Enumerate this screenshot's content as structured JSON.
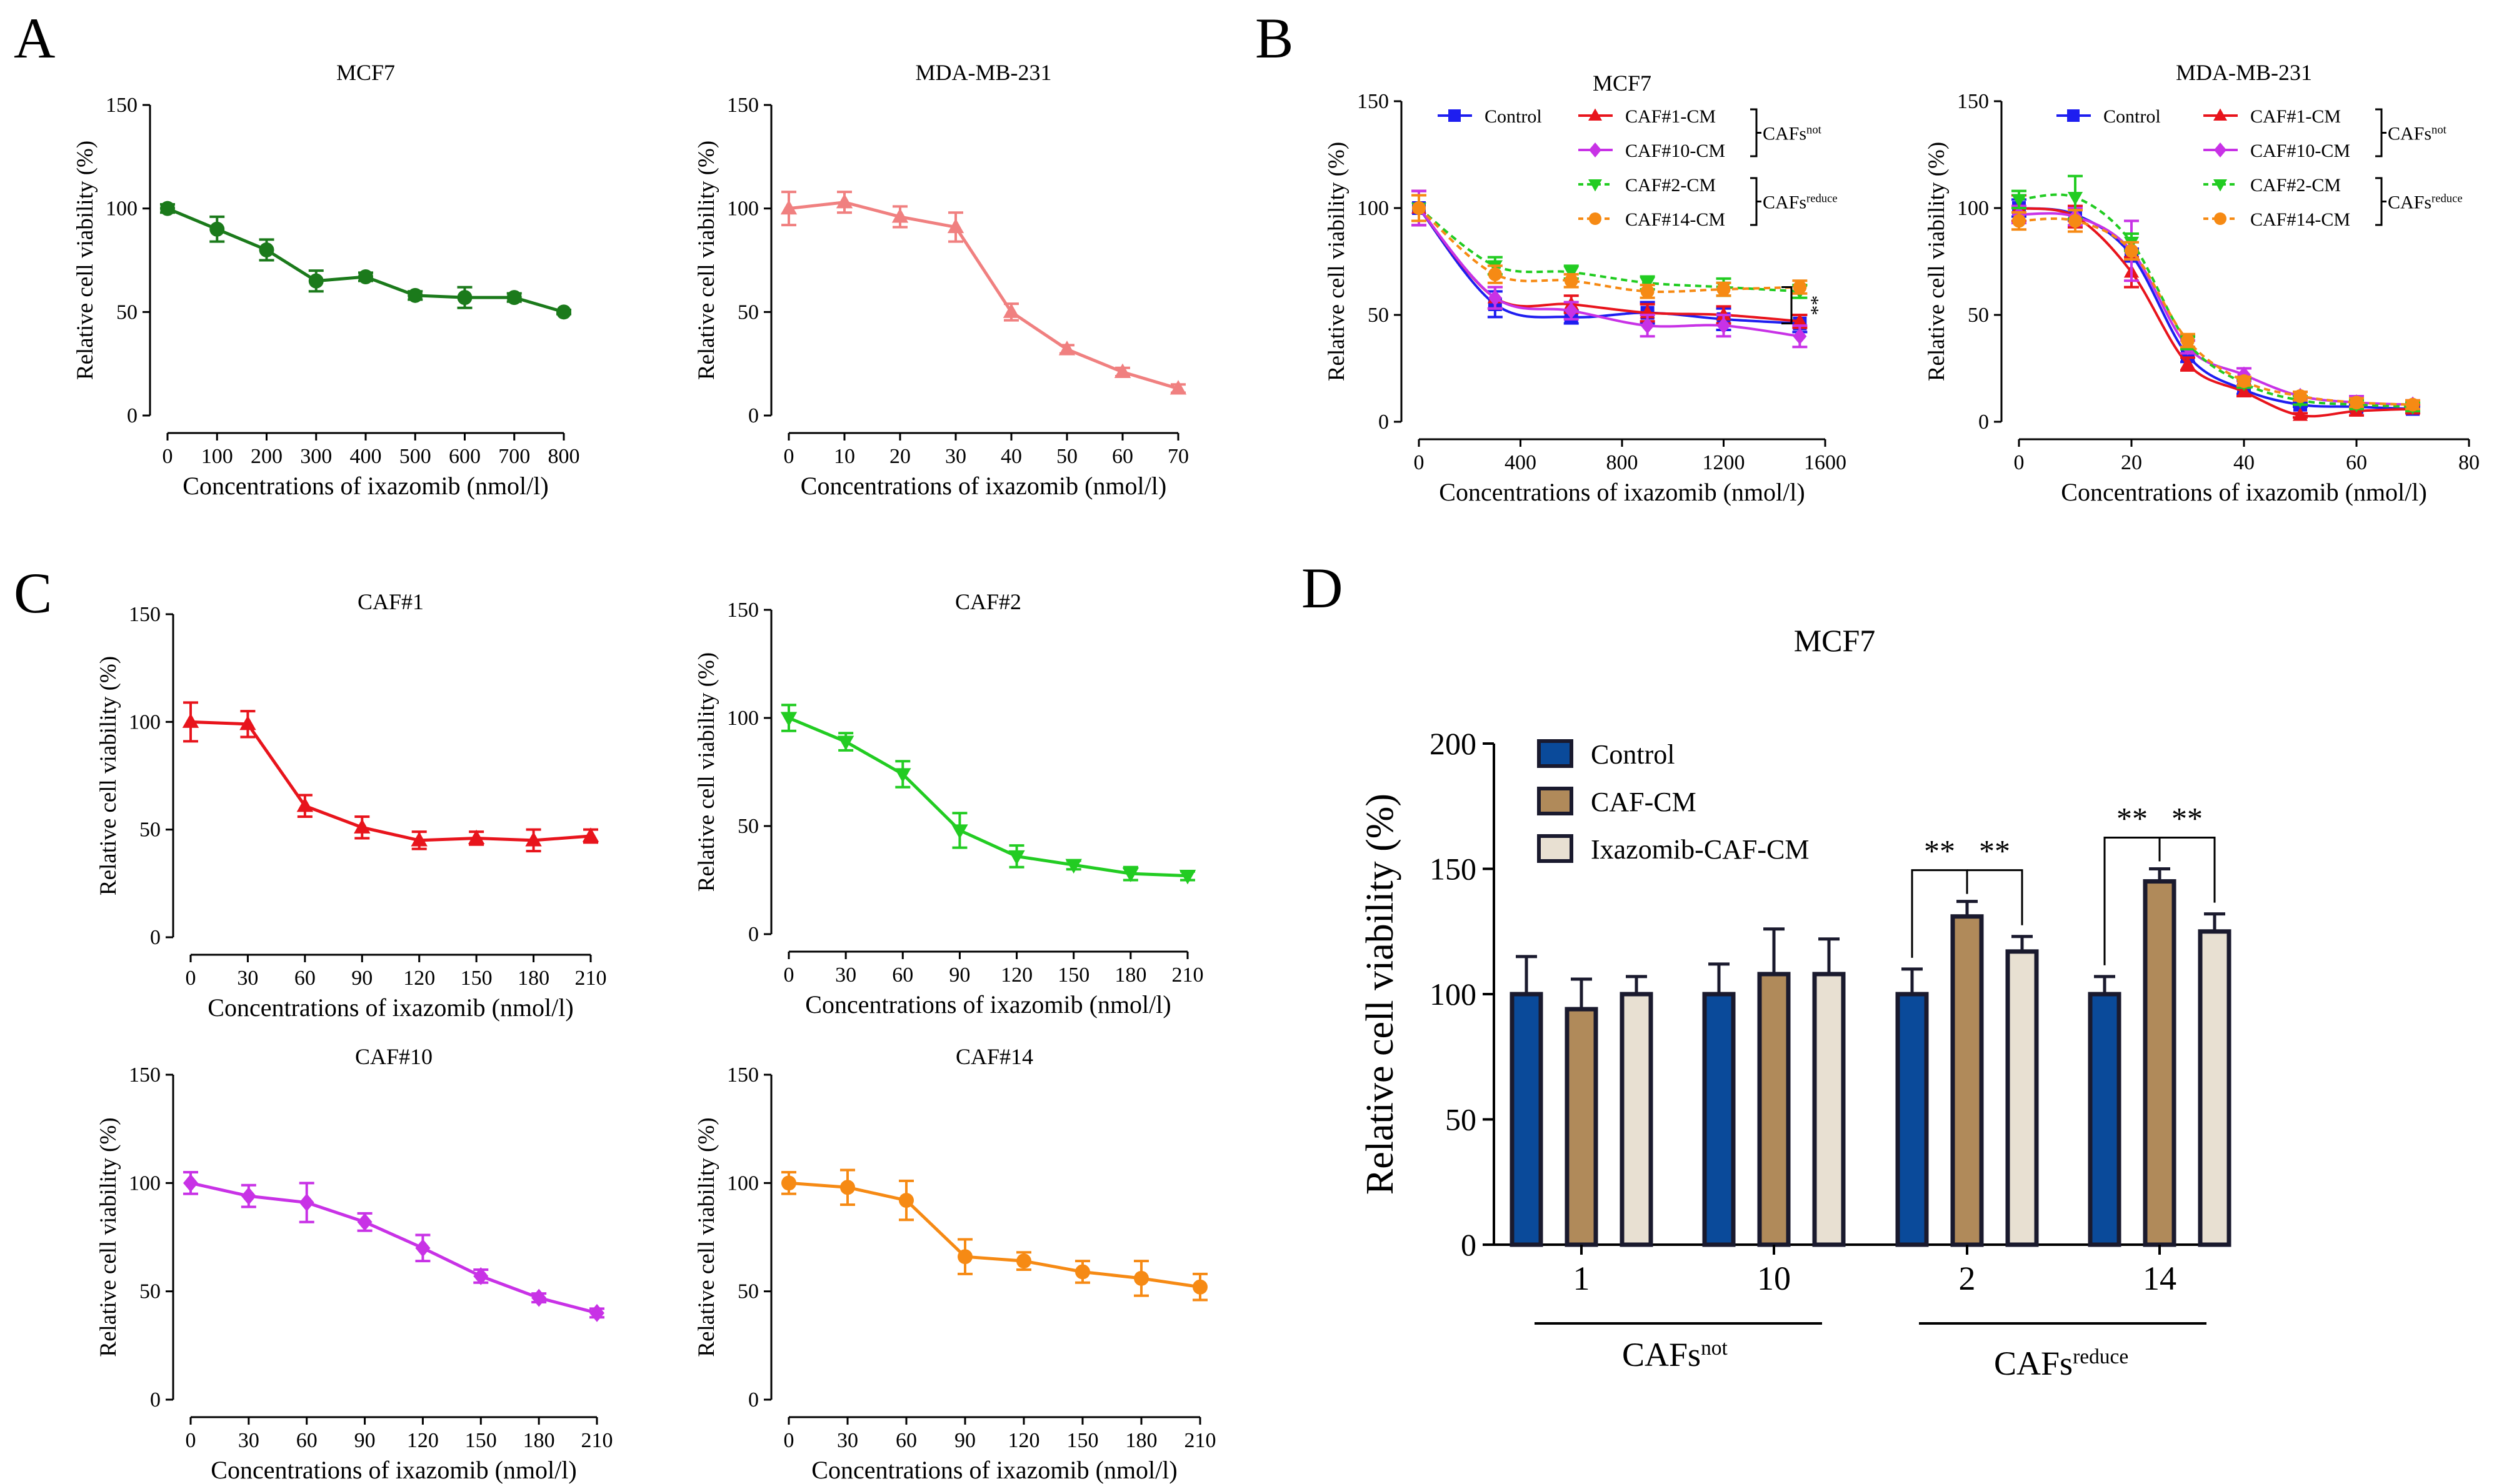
{
  "panels": {
    "A": "A",
    "B": "B",
    "C": "C",
    "D": "D"
  },
  "colors": {
    "green": "#1b7a1b",
    "pink": "#f08080",
    "red": "#e8141c",
    "lime": "#22cc22",
    "magenta": "#c832e6",
    "orange": "#f68a14",
    "blue": "#1e1ef0",
    "navy": "#0a4a9a",
    "tan": "#b08a5a",
    "beige": "#e8e0d2",
    "dark": "#1a1a2e"
  },
  "chart_data": [
    {
      "type": "line",
      "panel": "A",
      "title": "MCF7",
      "xlabel": "Concentrations of ixazomib (nmol/l)",
      "ylabel": "Relative cell viability (%)",
      "xlim": [
        0,
        800
      ],
      "ylim": [
        0,
        150
      ],
      "xticks": [
        0,
        100,
        200,
        300,
        400,
        500,
        600,
        700,
        800
      ],
      "yticks": [
        0,
        50,
        100,
        150
      ],
      "series": [
        {
          "name": "MCF7",
          "color": "#1b7a1b",
          "marker": "circle",
          "x": [
            0,
            100,
            200,
            300,
            400,
            500,
            600,
            700,
            800
          ],
          "y": [
            100,
            90,
            80,
            65,
            67,
            58,
            57,
            57,
            50
          ],
          "err": [
            2,
            6,
            5,
            5,
            2,
            2,
            5,
            2,
            1
          ]
        }
      ]
    },
    {
      "type": "line",
      "panel": "A",
      "title": "MDA-MB-231",
      "xlabel": "Concentrations of ixazomib (nmol/l)",
      "ylabel": "Relative cell viability (%)",
      "xlim": [
        0,
        70
      ],
      "ylim": [
        0,
        150
      ],
      "xticks": [
        0,
        10,
        20,
        30,
        40,
        50,
        60,
        70
      ],
      "yticks": [
        0,
        50,
        100,
        150
      ],
      "series": [
        {
          "name": "MDA-MB-231",
          "color": "#f08080",
          "marker": "triangle",
          "x": [
            0,
            10,
            20,
            30,
            40,
            50,
            60,
            70
          ],
          "y": [
            100,
            103,
            96,
            91,
            50,
            32,
            21,
            13
          ],
          "err": [
            8,
            5,
            5,
            7,
            4,
            2,
            2,
            2
          ]
        }
      ]
    },
    {
      "type": "line",
      "panel": "B",
      "title": "MCF7",
      "xlabel": "Concentrations of ixazomib (nmol/l)",
      "ylabel": "Relative cell viability (%)",
      "xlim": [
        0,
        1600
      ],
      "ylim": [
        0,
        150
      ],
      "xticks": [
        0,
        400,
        800,
        1200,
        1600
      ],
      "yticks": [
        0,
        50,
        100,
        150
      ],
      "significance": "**",
      "group_labels": [
        {
          "base": "CAFs",
          "sup": "not"
        },
        {
          "base": "CAFs",
          "sup": "reduce"
        }
      ],
      "series": [
        {
          "name": "Control",
          "color": "#1e1ef0",
          "marker": "square",
          "dashed": false,
          "x": [
            0,
            300,
            600,
            900,
            1200,
            1500
          ],
          "y": [
            100,
            55,
            49,
            51,
            48,
            46
          ],
          "err": [
            8,
            6,
            3,
            5,
            5,
            4
          ]
        },
        {
          "name": "CAF#1-CM",
          "color": "#e8141c",
          "marker": "triangle",
          "dashed": false,
          "x": [
            0,
            300,
            600,
            900,
            1200,
            1500
          ],
          "y": [
            100,
            58,
            55,
            51,
            50,
            47
          ],
          "err": [
            8,
            5,
            4,
            4,
            4,
            3
          ]
        },
        {
          "name": "CAF#10-CM",
          "color": "#c832e6",
          "marker": "diamond",
          "dashed": false,
          "x": [
            0,
            300,
            600,
            900,
            1200,
            1500
          ],
          "y": [
            100,
            58,
            52,
            45,
            45,
            40
          ],
          "err": [
            8,
            5,
            4,
            5,
            5,
            5
          ]
        },
        {
          "name": "CAF#2-CM",
          "color": "#22cc22",
          "marker": "triangle-down",
          "dashed": true,
          "x": [
            0,
            300,
            600,
            900,
            1200,
            1500
          ],
          "y": [
            100,
            73,
            70,
            65,
            63,
            61
          ],
          "err": [
            6,
            4,
            3,
            3,
            4,
            3
          ]
        },
        {
          "name": "CAF#14-CM",
          "color": "#f68a14",
          "marker": "circle",
          "dashed": true,
          "x": [
            0,
            300,
            600,
            900,
            1200,
            1500
          ],
          "y": [
            100,
            69,
            66,
            61,
            62,
            63
          ],
          "err": [
            6,
            4,
            3,
            3,
            3,
            3
          ]
        }
      ]
    },
    {
      "type": "line",
      "panel": "B",
      "title": "MDA-MB-231",
      "xlabel": "Concentrations of ixazomib (nmol/l)",
      "ylabel": "Relative cell viability (%)",
      "xlim": [
        0,
        80
      ],
      "ylim": [
        0,
        150
      ],
      "xticks": [
        0,
        20,
        40,
        60,
        80
      ],
      "yticks": [
        0,
        50,
        100,
        150
      ],
      "group_labels": [
        {
          "base": "CAFs",
          "sup": "not"
        },
        {
          "base": "CAFs",
          "sup": "reduce"
        }
      ],
      "series": [
        {
          "name": "Control",
          "color": "#1e1ef0",
          "marker": "square",
          "dashed": false,
          "x": [
            0,
            10,
            20,
            30,
            40,
            50,
            60,
            70
          ],
          "y": [
            100,
            97,
            78,
            31,
            15,
            8,
            7,
            6
          ],
          "err": [
            4,
            3,
            3,
            3,
            2,
            1,
            1,
            1
          ]
        },
        {
          "name": "CAF#1-CM",
          "color": "#e8141c",
          "marker": "triangle",
          "dashed": false,
          "x": [
            0,
            10,
            20,
            30,
            40,
            50,
            60,
            70
          ],
          "y": [
            100,
            96,
            70,
            27,
            14,
            3,
            5,
            6
          ],
          "err": [
            6,
            5,
            7,
            3,
            2,
            1,
            2,
            2
          ]
        },
        {
          "name": "CAF#10-CM",
          "color": "#c832e6",
          "marker": "diamond",
          "dashed": false,
          "x": [
            0,
            10,
            20,
            30,
            40,
            50,
            60,
            70
          ],
          "y": [
            97,
            96,
            80,
            35,
            22,
            12,
            9,
            8
          ],
          "err": [
            4,
            4,
            14,
            3,
            3,
            2,
            3,
            2
          ]
        },
        {
          "name": "CAF#2-CM",
          "color": "#22cc22",
          "marker": "triangle-down",
          "dashed": true,
          "x": [
            0,
            10,
            20,
            30,
            40,
            50,
            60,
            70
          ],
          "y": [
            104,
            105,
            84,
            37,
            18,
            10,
            8,
            7
          ],
          "err": [
            4,
            10,
            4,
            3,
            2,
            2,
            2,
            2
          ]
        },
        {
          "name": "CAF#14-CM",
          "color": "#f68a14",
          "marker": "circle",
          "dashed": true,
          "x": [
            0,
            10,
            20,
            30,
            40,
            50,
            60,
            70
          ],
          "y": [
            94,
            94,
            80,
            38,
            19,
            12,
            9,
            8
          ],
          "err": [
            4,
            5,
            4,
            3,
            2,
            2,
            2,
            2
          ]
        }
      ]
    },
    {
      "type": "line",
      "panel": "C",
      "title": "CAF#1",
      "xlabel": "Concentrations of ixazomib (nmol/l)",
      "ylabel": "Relative cell viability (%)",
      "xlim": [
        0,
        210
      ],
      "ylim": [
        0,
        150
      ],
      "xticks": [
        0,
        30,
        60,
        90,
        120,
        150,
        180,
        210
      ],
      "yticks": [
        0,
        50,
        100,
        150
      ],
      "series": [
        {
          "name": "CAF#1",
          "color": "#e8141c",
          "marker": "triangle",
          "x": [
            0,
            30,
            60,
            90,
            120,
            150,
            180,
            210
          ],
          "y": [
            100,
            99,
            61,
            51,
            45,
            46,
            45,
            47
          ],
          "err": [
            9,
            6,
            5,
            5,
            4,
            3,
            5,
            3
          ]
        }
      ]
    },
    {
      "type": "line",
      "panel": "C",
      "title": "CAF#2",
      "xlabel": "Concentrations of ixazomib (nmol/l)",
      "ylabel": "Relative cell viability (%)",
      "xlim": [
        0,
        210
      ],
      "ylim": [
        0,
        150
      ],
      "xticks": [
        0,
        30,
        60,
        90,
        120,
        150,
        180,
        210
      ],
      "yticks": [
        0,
        50,
        100,
        150
      ],
      "series": [
        {
          "name": "CAF#2",
          "color": "#22cc22",
          "marker": "triangle-down",
          "x": [
            0,
            30,
            60,
            90,
            120,
            150,
            180,
            210
          ],
          "y": [
            100,
            89,
            74,
            48,
            36,
            32,
            28,
            27
          ],
          "err": [
            6,
            4,
            6,
            8,
            5,
            2,
            3,
            2
          ]
        }
      ]
    },
    {
      "type": "line",
      "panel": "C",
      "title": "CAF#10",
      "xlabel": "Concentrations of ixazomib (nmol/l)",
      "ylabel": "Relative cell viability (%)",
      "xlim": [
        0,
        210
      ],
      "ylim": [
        0,
        150
      ],
      "xticks": [
        0,
        30,
        60,
        90,
        120,
        150,
        180,
        210
      ],
      "yticks": [
        0,
        50,
        100,
        150
      ],
      "series": [
        {
          "name": "CAF#10",
          "color": "#c832e6",
          "marker": "diamond",
          "x": [
            0,
            30,
            60,
            90,
            120,
            150,
            180,
            210
          ],
          "y": [
            100,
            94,
            91,
            82,
            70,
            57,
            47,
            40
          ],
          "err": [
            5,
            5,
            9,
            4,
            6,
            3,
            2,
            2
          ]
        }
      ]
    },
    {
      "type": "line",
      "panel": "C",
      "title": "CAF#14",
      "xlabel": "Concentrations of ixazomib (nmol/l)",
      "ylabel": "Relative cell viability (%)",
      "xlim": [
        0,
        210
      ],
      "ylim": [
        0,
        150
      ],
      "xticks": [
        0,
        30,
        60,
        90,
        120,
        150,
        180,
        210
      ],
      "yticks": [
        0,
        50,
        100,
        150
      ],
      "series": [
        {
          "name": "CAF#14",
          "color": "#f68a14",
          "marker": "circle",
          "x": [
            0,
            30,
            60,
            90,
            120,
            150,
            180,
            210
          ],
          "y": [
            100,
            98,
            92,
            66,
            64,
            59,
            56,
            52
          ],
          "err": [
            5,
            8,
            9,
            8,
            4,
            5,
            8,
            6
          ]
        }
      ]
    },
    {
      "type": "bar",
      "panel": "D",
      "title": "MCF7",
      "ylabel": "Relative cell viability (%)",
      "ylim": [
        0,
        200
      ],
      "yticks": [
        0,
        50,
        100,
        150,
        200
      ],
      "categories": [
        "1",
        "10",
        "2",
        "14"
      ],
      "group_labels": [
        {
          "base": "CAFs",
          "sup": "not"
        },
        {
          "base": "CAFs",
          "sup": "reduce"
        }
      ],
      "significance": "**",
      "series": [
        {
          "name": "Control",
          "color": "#0a4a9a",
          "values": [
            100,
            100,
            100,
            100
          ],
          "err": [
            15,
            12,
            10,
            7
          ]
        },
        {
          "name": "CAF-CM",
          "color": "#b08a5a",
          "values": [
            94,
            108,
            131,
            145
          ],
          "err": [
            12,
            18,
            6,
            5
          ]
        },
        {
          "name": "Ixazomib-CAF-CM",
          "color": "#e8e0d2",
          "values": [
            100,
            108,
            117,
            125
          ],
          "err": [
            7,
            14,
            6,
            7
          ]
        }
      ]
    }
  ]
}
